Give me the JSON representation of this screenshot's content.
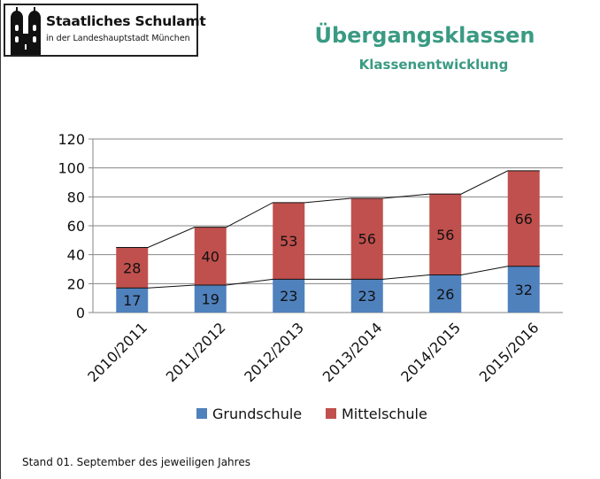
{
  "logo": {
    "name": "Staatliches Schulamt",
    "subline": "in der Landeshauptstadt München"
  },
  "footer": "Stand 01. September des jeweiligen Jahres",
  "colors": {
    "title": "#3a9a83",
    "grundschule": "#4f81bd",
    "mittelschule": "#c0504d"
  },
  "chart_data": {
    "type": "bar",
    "stacked": true,
    "title": "Übergangsklassen",
    "subtitle": "Klassenentwicklung",
    "categories": [
      "2010/2011",
      "2011/2012",
      "2012/2013",
      "2013/2014",
      "2014/2015",
      "2015/2016"
    ],
    "series": [
      {
        "name": "Grundschule",
        "values": [
          17,
          19,
          23,
          23,
          26,
          32
        ]
      },
      {
        "name": "Mittelschule",
        "values": [
          28,
          40,
          53,
          56,
          56,
          66
        ]
      }
    ],
    "ylim": [
      0,
      120
    ],
    "yticks": [
      0,
      20,
      40,
      60,
      80,
      100,
      120
    ],
    "grid": true,
    "legend": "bottom",
    "xlabel": "",
    "ylabel": ""
  }
}
